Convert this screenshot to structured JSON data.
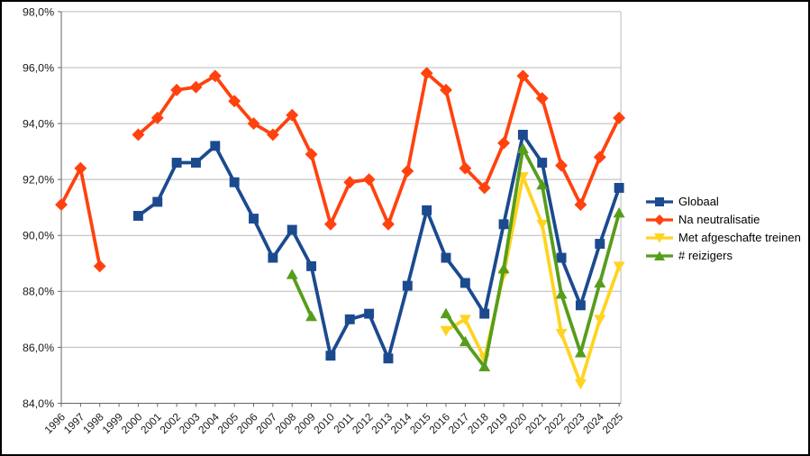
{
  "chart_data": {
    "type": "line",
    "title": "",
    "xlabel": "",
    "ylabel": "",
    "x_categories": [
      "1996",
      "1997",
      "1998",
      "1999",
      "2000",
      "2001",
      "2002",
      "2003",
      "2004",
      "2005",
      "2006",
      "2007",
      "2008",
      "2009",
      "2010",
      "2011",
      "2012",
      "2013",
      "2014",
      "2015",
      "2016",
      "2017",
      "2018",
      "2019",
      "2020",
      "2021",
      "2022",
      "2023",
      "2024",
      "2025"
    ],
    "ylim": [
      84,
      98
    ],
    "y_tick_step": 2,
    "y_tick_labels": [
      "84,0%",
      "86,0%",
      "88,0%",
      "90,0%",
      "92,0%",
      "94,0%",
      "96,0%",
      "98,0%"
    ],
    "grid": "horizontal",
    "legend_position": "right",
    "colors": {
      "grid": "#b9b9b9",
      "axis": "#666666",
      "tick_text": "#1a1a1a",
      "background": "#ffffff",
      "frame": "#000000"
    },
    "series": [
      {
        "name": "Globaal",
        "color": "#1B4A8F",
        "marker": "square",
        "values": [
          null,
          null,
          null,
          null,
          90.7,
          91.2,
          92.6,
          92.6,
          93.2,
          91.9,
          90.6,
          89.2,
          90.2,
          88.9,
          85.7,
          87.0,
          87.2,
          85.6,
          88.2,
          90.9,
          89.2,
          88.3,
          87.2,
          90.4,
          93.6,
          92.6,
          89.2,
          87.5,
          89.7,
          91.7
        ]
      },
      {
        "name": "Na neutralisatie",
        "color": "#FF420E",
        "marker": "diamond",
        "values": [
          91.1,
          92.4,
          88.9,
          null,
          93.6,
          94.2,
          95.2,
          95.3,
          95.7,
          94.8,
          94.0,
          93.6,
          94.3,
          92.9,
          90.4,
          91.9,
          92.0,
          90.4,
          92.3,
          95.8,
          95.2,
          92.4,
          91.7,
          93.3,
          95.7,
          94.9,
          92.5,
          91.1,
          92.8,
          94.2
        ]
      },
      {
        "name": "Met afgeschafte treinen",
        "color": "#FFD320",
        "marker": "triangle-down",
        "values": [
          null,
          null,
          null,
          null,
          null,
          null,
          null,
          null,
          null,
          null,
          null,
          null,
          null,
          null,
          null,
          null,
          null,
          null,
          null,
          null,
          86.6,
          87.0,
          85.6,
          88.6,
          92.1,
          90.4,
          86.5,
          84.7,
          87.0,
          88.9
        ]
      },
      {
        "name": "# reizigers",
        "color": "#579D1C",
        "marker": "triangle-up",
        "values": [
          null,
          null,
          null,
          null,
          null,
          null,
          null,
          null,
          null,
          null,
          null,
          null,
          88.6,
          87.1,
          null,
          null,
          null,
          null,
          null,
          null,
          87.2,
          86.2,
          85.3,
          88.8,
          93.1,
          91.8,
          87.9,
          85.8,
          88.3,
          90.8
        ]
      }
    ]
  }
}
